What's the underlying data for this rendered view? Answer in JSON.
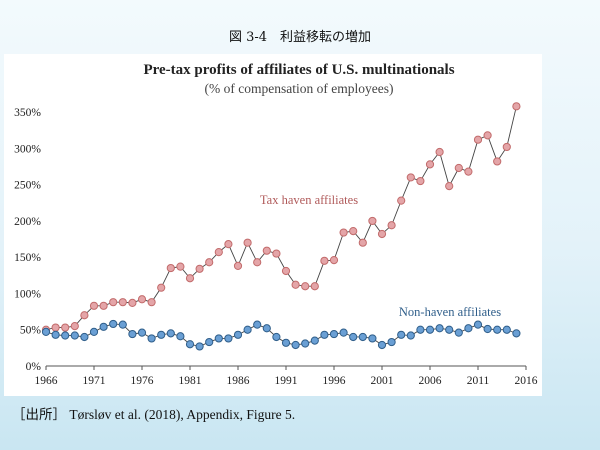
{
  "figure": {
    "heading": "図 3-4　利益移転の増加",
    "source": "［出所］ Tørsløv et al. (2018), Appendix, Figure 5."
  },
  "chart_data": {
    "type": "line",
    "title": "Pre-tax profits of affiliates of U.S. multinationals",
    "subtitle": "(% of compensation of employees)",
    "x": [
      1966,
      1967,
      1968,
      1969,
      1970,
      1971,
      1972,
      1973,
      1974,
      1975,
      1976,
      1977,
      1978,
      1979,
      1980,
      1981,
      1982,
      1983,
      1984,
      1985,
      1986,
      1987,
      1988,
      1989,
      1990,
      1991,
      1992,
      1993,
      1994,
      1995,
      1996,
      1997,
      1998,
      1999,
      2000,
      2001,
      2002,
      2003,
      2004,
      2005,
      2006,
      2007,
      2008,
      2009,
      2010,
      2011,
      2012,
      2013,
      2014,
      2015
    ],
    "series": [
      {
        "name": "Tax haven affiliates",
        "color": "#c26b6b",
        "marker_fill": "#e4a5a8",
        "values": [
          50,
          53,
          53,
          55,
          70,
          83,
          83,
          88,
          88,
          87,
          92,
          88,
          108,
          135,
          137,
          121,
          134,
          143,
          157,
          168,
          138,
          170,
          143,
          159,
          155,
          131,
          112,
          110,
          110,
          145,
          146,
          184,
          186,
          170,
          200,
          182,
          194,
          228,
          260,
          255,
          278,
          295,
          248,
          273,
          268,
          312,
          318,
          282,
          302,
          358
        ]
      },
      {
        "name": "Non-haven affiliates",
        "color": "#2f5e8a",
        "marker_fill": "#6a9fd4",
        "values": [
          47,
          43,
          42,
          42,
          40,
          47,
          54,
          58,
          57,
          44,
          46,
          38,
          43,
          45,
          41,
          30,
          27,
          33,
          38,
          38,
          43,
          50,
          57,
          52,
          40,
          32,
          29,
          31,
          35,
          43,
          44,
          46,
          40,
          40,
          38,
          29,
          33,
          43,
          42,
          50,
          50,
          52,
          50,
          46,
          52,
          57,
          51,
          50,
          50,
          45
        ]
      }
    ],
    "xticks": [
      "1966",
      "1971",
      "1976",
      "1981",
      "1986",
      "1991",
      "1996",
      "2001",
      "2006",
      "2011",
      "2016"
    ],
    "yticks": [
      "0%",
      "50%",
      "100%",
      "150%",
      "200%",
      "250%",
      "300%",
      "350%"
    ],
    "xlim": [
      1966,
      2016
    ],
    "ylim": [
      0,
      375
    ],
    "grid": false
  }
}
